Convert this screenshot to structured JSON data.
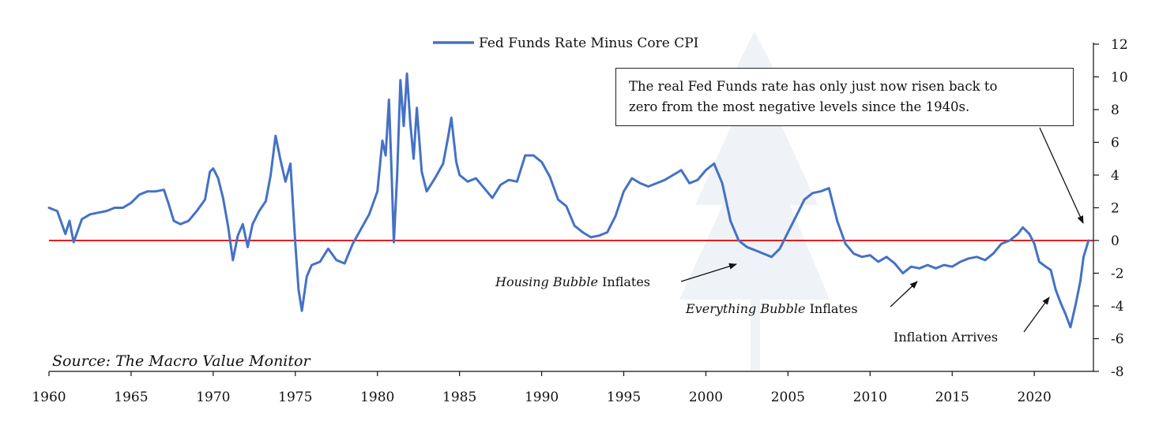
{
  "chart_data": {
    "type": "line",
    "series": [
      {
        "name": "Fed Funds Rate Minus Core CPI",
        "color": "#4472C4",
        "points": [
          [
            1960.0,
            2.0
          ],
          [
            1960.5,
            1.8
          ],
          [
            1961.0,
            0.4
          ],
          [
            1961.25,
            1.2
          ],
          [
            1961.5,
            -0.1
          ],
          [
            1962.0,
            1.3
          ],
          [
            1962.5,
            1.6
          ],
          [
            1963.0,
            1.7
          ],
          [
            1963.5,
            1.8
          ],
          [
            1964.0,
            2.0
          ],
          [
            1964.5,
            2.0
          ],
          [
            1965.0,
            2.3
          ],
          [
            1965.5,
            2.8
          ],
          [
            1966.0,
            3.0
          ],
          [
            1966.5,
            3.0
          ],
          [
            1967.0,
            3.1
          ],
          [
            1967.3,
            2.2
          ],
          [
            1967.6,
            1.2
          ],
          [
            1968.0,
            1.0
          ],
          [
            1968.5,
            1.2
          ],
          [
            1969.0,
            1.8
          ],
          [
            1969.5,
            2.5
          ],
          [
            1969.8,
            4.2
          ],
          [
            1970.0,
            4.4
          ],
          [
            1970.3,
            3.8
          ],
          [
            1970.6,
            2.6
          ],
          [
            1970.9,
            0.9
          ],
          [
            1971.2,
            -1.2
          ],
          [
            1971.5,
            0.3
          ],
          [
            1971.8,
            1.0
          ],
          [
            1972.1,
            -0.4
          ],
          [
            1972.4,
            1.0
          ],
          [
            1972.8,
            1.8
          ],
          [
            1973.2,
            2.4
          ],
          [
            1973.5,
            4.0
          ],
          [
            1973.8,
            6.4
          ],
          [
            1974.1,
            4.9
          ],
          [
            1974.4,
            3.6
          ],
          [
            1974.7,
            4.7
          ],
          [
            1975.0,
            -0.2
          ],
          [
            1975.2,
            -3.0
          ],
          [
            1975.4,
            -4.3
          ],
          [
            1975.7,
            -2.2
          ],
          [
            1976.0,
            -1.5
          ],
          [
            1976.5,
            -1.3
          ],
          [
            1977.0,
            -0.5
          ],
          [
            1977.5,
            -1.2
          ],
          [
            1978.0,
            -1.4
          ],
          [
            1978.5,
            -0.2
          ],
          [
            1979.0,
            0.7
          ],
          [
            1979.5,
            1.6
          ],
          [
            1980.0,
            3.0
          ],
          [
            1980.3,
            6.1
          ],
          [
            1980.5,
            5.2
          ],
          [
            1980.7,
            8.6
          ],
          [
            1980.85,
            4.5
          ],
          [
            1981.0,
            -0.1
          ],
          [
            1981.2,
            4.0
          ],
          [
            1981.4,
            9.8
          ],
          [
            1981.6,
            7.0
          ],
          [
            1981.8,
            10.2
          ],
          [
            1982.0,
            7.2
          ],
          [
            1982.2,
            5.0
          ],
          [
            1982.4,
            8.1
          ],
          [
            1982.7,
            4.2
          ],
          [
            1983.0,
            3.0
          ],
          [
            1983.5,
            3.8
          ],
          [
            1984.0,
            4.7
          ],
          [
            1984.3,
            6.3
          ],
          [
            1984.5,
            7.5
          ],
          [
            1984.8,
            4.8
          ],
          [
            1985.0,
            4.0
          ],
          [
            1985.5,
            3.6
          ],
          [
            1986.0,
            3.8
          ],
          [
            1986.5,
            3.2
          ],
          [
            1987.0,
            2.6
          ],
          [
            1987.5,
            3.4
          ],
          [
            1988.0,
            3.7
          ],
          [
            1988.5,
            3.6
          ],
          [
            1989.0,
            5.2
          ],
          [
            1989.5,
            5.2
          ],
          [
            1990.0,
            4.8
          ],
          [
            1990.5,
            3.9
          ],
          [
            1991.0,
            2.5
          ],
          [
            1991.5,
            2.1
          ],
          [
            1992.0,
            0.9
          ],
          [
            1992.5,
            0.5
          ],
          [
            1993.0,
            0.2
          ],
          [
            1993.5,
            0.3
          ],
          [
            1994.0,
            0.5
          ],
          [
            1994.5,
            1.5
          ],
          [
            1995.0,
            3.0
          ],
          [
            1995.5,
            3.8
          ],
          [
            1996.0,
            3.5
          ],
          [
            1996.5,
            3.3
          ],
          [
            1997.0,
            3.5
          ],
          [
            1997.5,
            3.7
          ],
          [
            1998.0,
            4.0
          ],
          [
            1998.5,
            4.3
          ],
          [
            1999.0,
            3.5
          ],
          [
            1999.5,
            3.7
          ],
          [
            2000.0,
            4.3
          ],
          [
            2000.5,
            4.7
          ],
          [
            2001.0,
            3.5
          ],
          [
            2001.5,
            1.2
          ],
          [
            2002.0,
            0.0
          ],
          [
            2002.5,
            -0.4
          ],
          [
            2003.0,
            -0.6
          ],
          [
            2003.5,
            -0.8
          ],
          [
            2004.0,
            -1.0
          ],
          [
            2004.5,
            -0.5
          ],
          [
            2005.0,
            0.5
          ],
          [
            2005.5,
            1.5
          ],
          [
            2006.0,
            2.5
          ],
          [
            2006.5,
            2.9
          ],
          [
            2007.0,
            3.0
          ],
          [
            2007.5,
            3.2
          ],
          [
            2008.0,
            1.2
          ],
          [
            2008.5,
            -0.2
          ],
          [
            2009.0,
            -0.8
          ],
          [
            2009.5,
            -1.0
          ],
          [
            2010.0,
            -0.9
          ],
          [
            2010.5,
            -1.3
          ],
          [
            2011.0,
            -1.0
          ],
          [
            2011.5,
            -1.4
          ],
          [
            2012.0,
            -2.0
          ],
          [
            2012.5,
            -1.6
          ],
          [
            2013.0,
            -1.7
          ],
          [
            2013.5,
            -1.5
          ],
          [
            2014.0,
            -1.7
          ],
          [
            2014.5,
            -1.5
          ],
          [
            2015.0,
            -1.6
          ],
          [
            2015.5,
            -1.3
          ],
          [
            2016.0,
            -1.1
          ],
          [
            2016.5,
            -1.0
          ],
          [
            2017.0,
            -1.2
          ],
          [
            2017.5,
            -0.8
          ],
          [
            2018.0,
            -0.2
          ],
          [
            2018.5,
            0.0
          ],
          [
            2019.0,
            0.4
          ],
          [
            2019.3,
            0.8
          ],
          [
            2019.7,
            0.4
          ],
          [
            2020.0,
            -0.2
          ],
          [
            2020.3,
            -1.3
          ],
          [
            2020.7,
            -1.6
          ],
          [
            2021.0,
            -1.8
          ],
          [
            2021.3,
            -3.0
          ],
          [
            2021.6,
            -3.8
          ],
          [
            2021.9,
            -4.5
          ],
          [
            2022.2,
            -5.3
          ],
          [
            2022.5,
            -4.0
          ],
          [
            2022.8,
            -2.5
          ],
          [
            2023.0,
            -1.0
          ],
          [
            2023.3,
            0.0
          ]
        ]
      }
    ],
    "xlim": [
      1960,
      2023.6
    ],
    "ylim": [
      -8,
      12
    ],
    "x_ticks": [
      "1960",
      "1965",
      "1970",
      "1975",
      "1980",
      "1985",
      "1990",
      "1995",
      "2000",
      "2005",
      "2010",
      "2015",
      "2020"
    ],
    "y_ticks": [
      "12",
      "10",
      "8",
      "6",
      "4",
      "2",
      "0",
      "-2",
      "-4",
      "-6",
      "-8"
    ],
    "y_axis_position": "right",
    "zero_line_color": "#E00000",
    "legend": {
      "placement": "top-center",
      "label": "Fed Funds Rate Minus Core CPI"
    },
    "grid": false,
    "source": "Source: The Macro Value Monitor",
    "callout": {
      "line1": "The real Fed Funds rate has only just now risen back to",
      "line2": "zero from the most negative levels since the 1940s."
    },
    "annotations": {
      "housing": {
        "italic": "Housing Bubble",
        "rest": " Inflates"
      },
      "everything": {
        "italic": "Everything Bubble",
        "rest": " Inflates"
      },
      "inflation": {
        "text": "Inflation Arrives"
      }
    }
  }
}
